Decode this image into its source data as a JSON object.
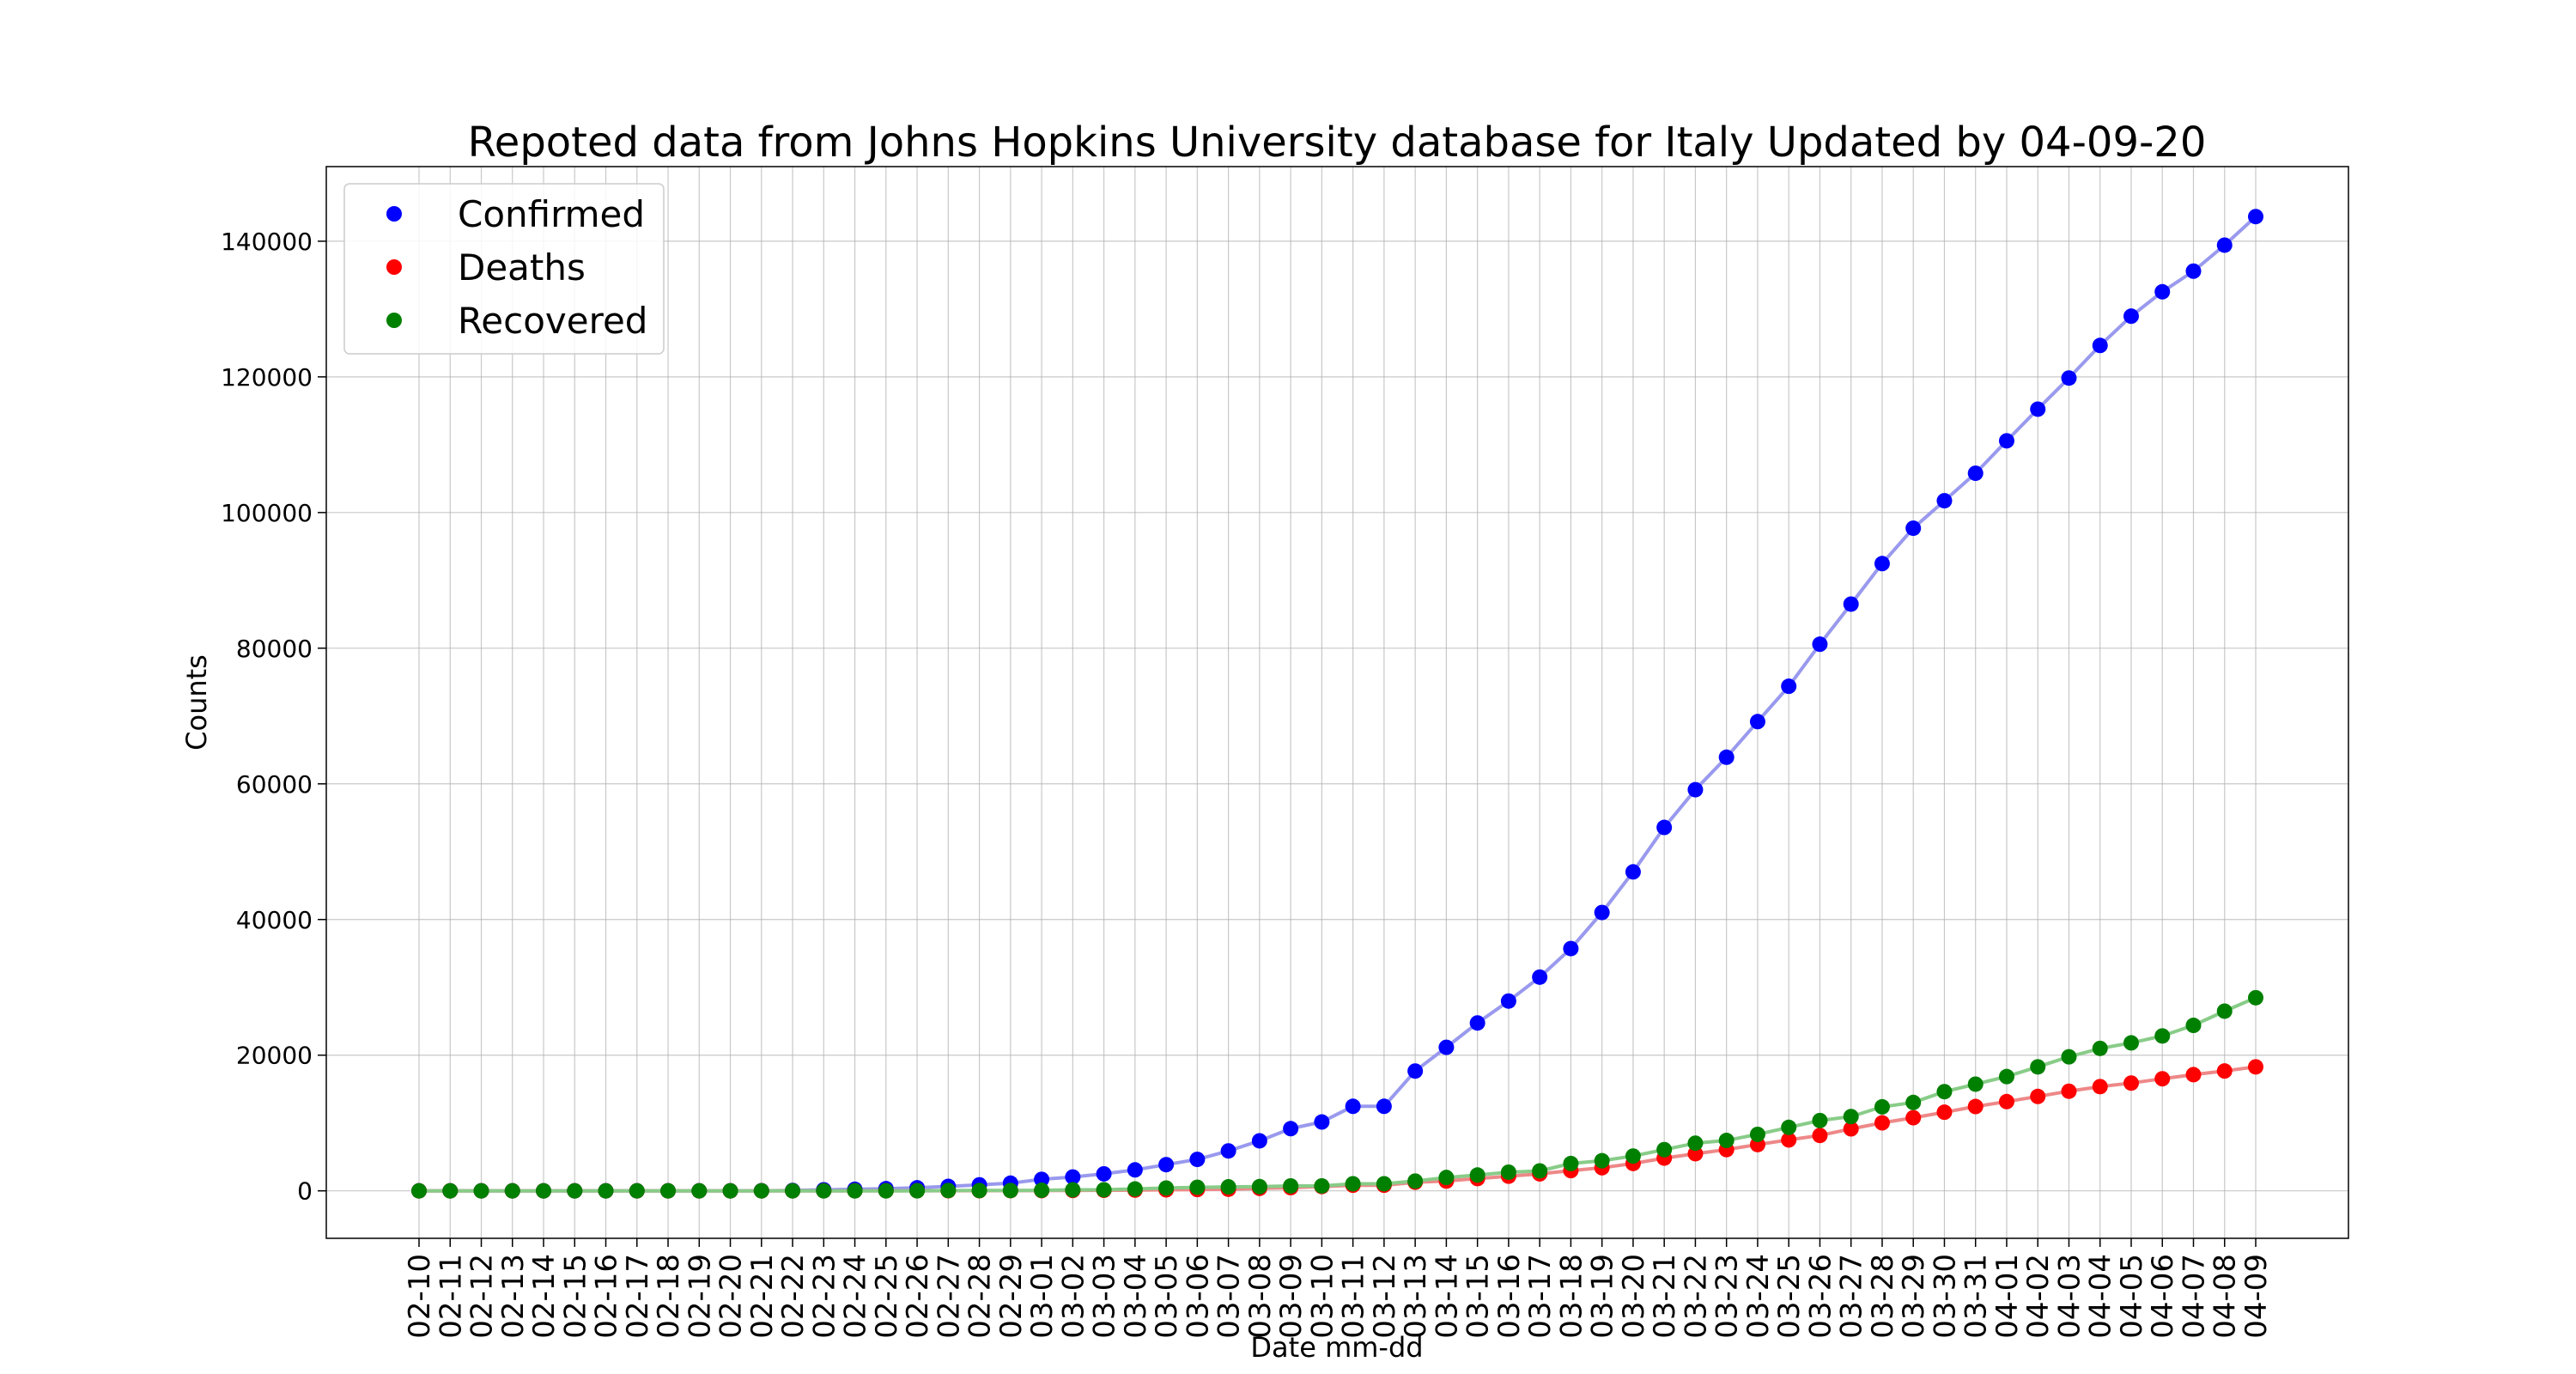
{
  "chart_data": {
    "type": "line",
    "title": "Repoted data from Johns Hopkins University database for Italy Updated by 04-09-20",
    "xlabel": "Date mm-dd",
    "ylabel": "Counts",
    "ylim": [
      -7000,
      151000
    ],
    "yticks": [
      0,
      20000,
      40000,
      60000,
      80000,
      100000,
      120000,
      140000
    ],
    "grid": true,
    "legend_position": "top-left",
    "categories": [
      "02-10",
      "02-11",
      "02-12",
      "02-13",
      "02-14",
      "02-15",
      "02-16",
      "02-17",
      "02-18",
      "02-19",
      "02-20",
      "02-21",
      "02-22",
      "02-23",
      "02-24",
      "02-25",
      "02-26",
      "02-27",
      "02-28",
      "02-29",
      "03-01",
      "03-02",
      "03-03",
      "03-04",
      "03-05",
      "03-06",
      "03-07",
      "03-08",
      "03-09",
      "03-10",
      "03-11",
      "03-12",
      "03-13",
      "03-14",
      "03-15",
      "03-16",
      "03-17",
      "03-18",
      "03-19",
      "03-20",
      "03-21",
      "03-22",
      "03-23",
      "03-24",
      "03-25",
      "03-26",
      "03-27",
      "03-28",
      "03-29",
      "03-30",
      "03-31",
      "04-01",
      "04-02",
      "04-03",
      "04-04",
      "04-05",
      "04-06",
      "04-07",
      "04-08",
      "04-09"
    ],
    "series": [
      {
        "name": "Confirmed",
        "color": "#0000ff",
        "line_color": "#9999ee",
        "values": [
          3,
          3,
          3,
          3,
          3,
          3,
          3,
          3,
          3,
          3,
          3,
          20,
          62,
          155,
          229,
          322,
          453,
          655,
          888,
          1128,
          1694,
          2036,
          2502,
          3089,
          3858,
          4636,
          5883,
          7375,
          9172,
          10149,
          12462,
          12462,
          17660,
          21157,
          24747,
          27980,
          31506,
          35713,
          41035,
          47021,
          53578,
          59138,
          63927,
          69176,
          74386,
          80589,
          86498,
          92472,
          97689,
          101739,
          105792,
          110574,
          115242,
          119827,
          124632,
          128948,
          132547,
          135586,
          139422,
          143626
        ]
      },
      {
        "name": "Deaths",
        "color": "#ff0000",
        "line_color": "#ee8888",
        "values": [
          0,
          0,
          0,
          0,
          0,
          0,
          0,
          0,
          0,
          0,
          0,
          1,
          2,
          3,
          7,
          10,
          12,
          17,
          21,
          29,
          34,
          52,
          79,
          107,
          148,
          197,
          233,
          366,
          463,
          631,
          827,
          827,
          1266,
          1441,
          1809,
          2158,
          2503,
          2978,
          3405,
          4032,
          4825,
          5476,
          6077,
          6820,
          7503,
          8165,
          9134,
          10023,
          10779,
          11591,
          12428,
          13155,
          13915,
          14681,
          15362,
          15887,
          16523,
          17127,
          17669,
          18279
        ]
      },
      {
        "name": "Recovered",
        "color": "#008000",
        "line_color": "#88cc88",
        "values": [
          0,
          0,
          0,
          0,
          0,
          0,
          0,
          0,
          0,
          0,
          0,
          0,
          0,
          0,
          1,
          1,
          3,
          45,
          46,
          46,
          83,
          149,
          160,
          276,
          414,
          523,
          589,
          622,
          724,
          724,
          1045,
          1045,
          1439,
          1966,
          2335,
          2749,
          2941,
          4025,
          4440,
          5129,
          6072,
          7024,
          7432,
          8326,
          9362,
          10361,
          10950,
          12384,
          13030,
          14620,
          15729,
          16847,
          18278,
          19758,
          20996,
          21815,
          22837,
          24392,
          26491,
          28470
        ]
      }
    ]
  }
}
